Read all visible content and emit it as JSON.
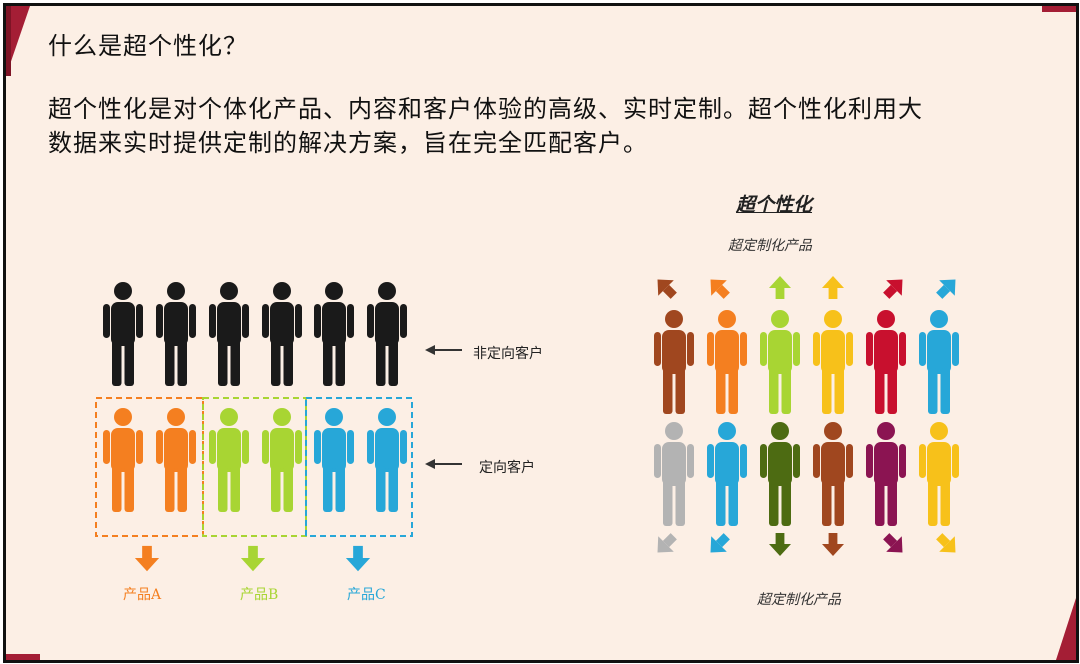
{
  "title": "什么是超个性化？",
  "description": "超个性化是对个体化产品、内容和客户体验的高级、实时定制。超个性化利用大数据来实时提供定制的解决方案，旨在完全匹配客户。",
  "left": {
    "label_untargeted": "非定向客户",
    "label_targeted": "定向客户",
    "products": [
      {
        "label": "产品A",
        "color": "#f47f20"
      },
      {
        "label": "产品B",
        "color": "#a8d533"
      },
      {
        "label": "产品C",
        "color": "#27a7d8"
      }
    ],
    "top_row_color": "#1a1a1a",
    "bottom_row_colors": [
      "#f47f20",
      "#f47f20",
      "#a8d533",
      "#a8d533",
      "#27a7d8",
      "#27a7d8"
    ]
  },
  "right": {
    "heading": "超个性化",
    "top_caption": "超定制化产品",
    "bottom_caption": "超定制化产品",
    "row1_colors": [
      "#a0471f",
      "#f47f20",
      "#a8d533",
      "#f7c11a",
      "#c8102e",
      "#27a7d8"
    ],
    "row2_colors": [
      "#b3b3b3",
      "#27a7d8",
      "#4d6b12",
      "#a0471f",
      "#8b1452",
      "#f7c11a"
    ]
  },
  "colors": {
    "accent": "#a41e35",
    "background": "#fcefe5"
  }
}
